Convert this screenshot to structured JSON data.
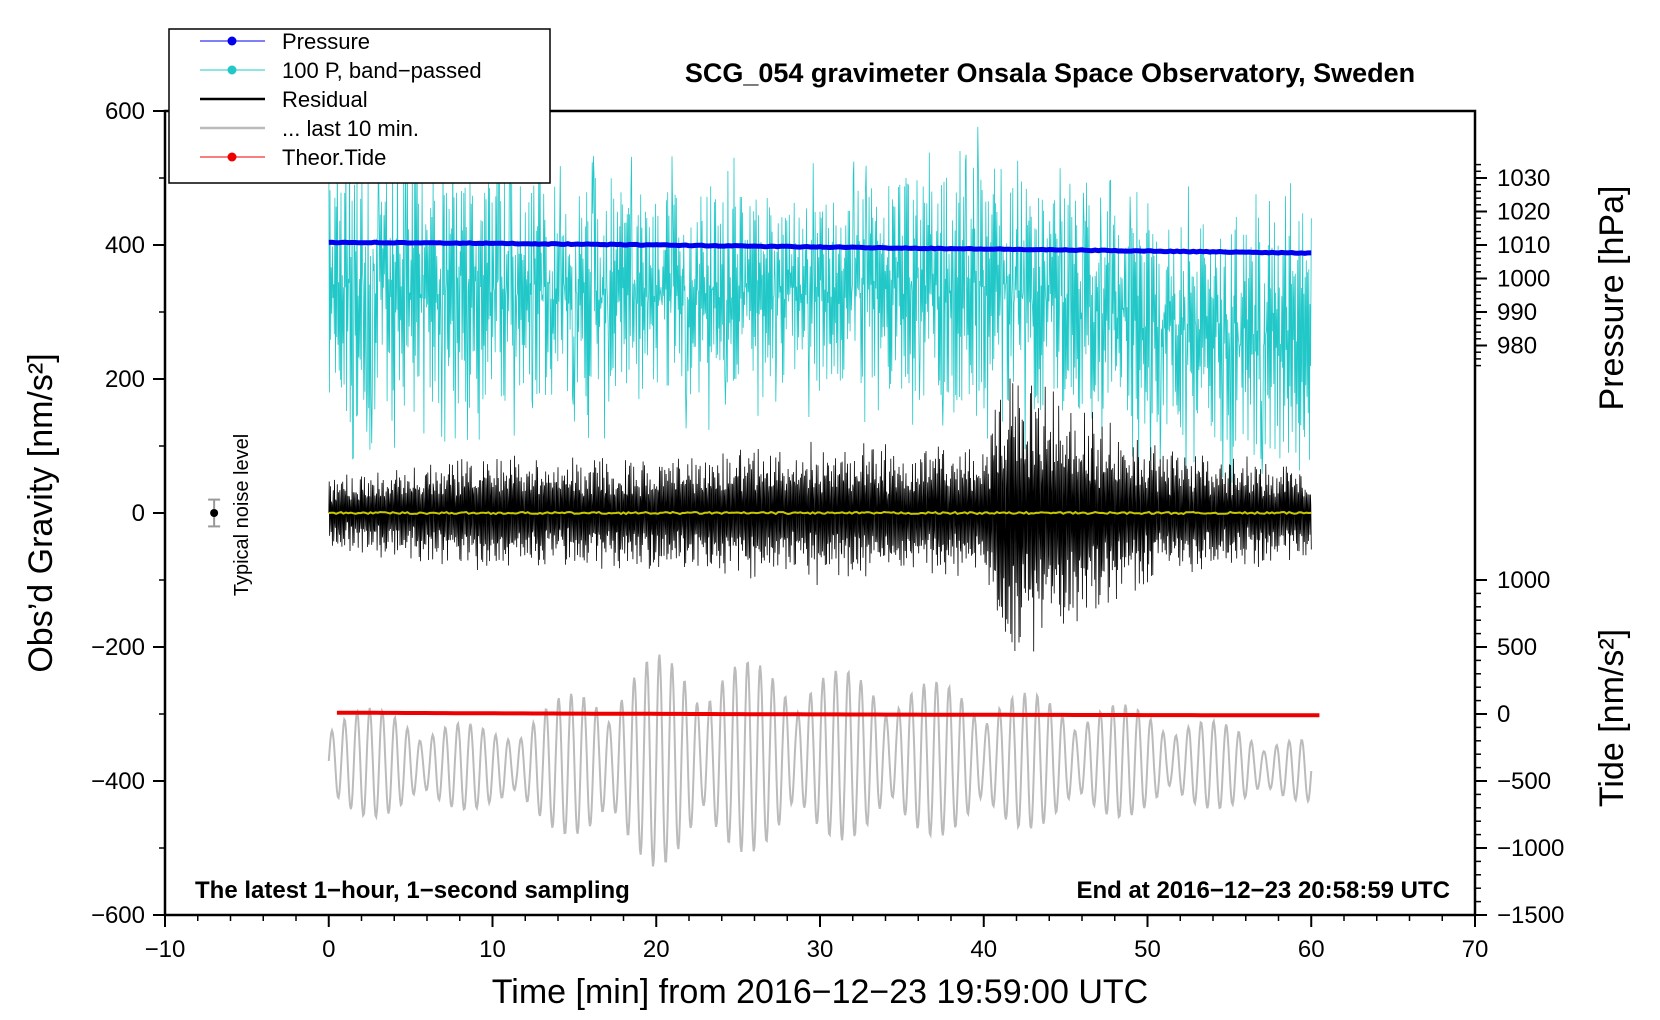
{
  "chart_data": {
    "type": "line",
    "title": "SCG_054 gravimeter Onsala Space Observatory, Sweden",
    "xlabel": "Time [min] from 2016−12−23 19:59:00 UTC",
    "ylabel_left": "Obs’d Gravity [nm/s²]",
    "ylabel_right_top": "Pressure [hPa]",
    "ylabel_right_bottom": "Tide [nm/s²]",
    "xlim": [
      -10,
      70
    ],
    "ylim": [
      -600,
      600
    ],
    "x_ticks": [
      -10,
      0,
      10,
      20,
      30,
      40,
      50,
      60,
      70
    ],
    "x_tick_labels": [
      "−10",
      "0",
      "10",
      "20",
      "30",
      "40",
      "50",
      "60",
      "70"
    ],
    "y_ticks": [
      -600,
      -400,
      -200,
      0,
      200,
      400,
      600
    ],
    "y_tick_labels": [
      "−600",
      "−400",
      "−200",
      "0",
      "200",
      "400",
      "600"
    ],
    "pressure_axis": {
      "ticks": [
        980,
        990,
        1000,
        1010,
        1020,
        1030
      ],
      "tick_labels": [
        "980",
        "990",
        "1000",
        "1010",
        "1020",
        "1030"
      ],
      "g_at_ref": 400,
      "ref_value": 1010,
      "g_per_unit": -5.0
    },
    "tide_axis": {
      "ticks": [
        -1500,
        -1000,
        -500,
        0,
        500,
        1000
      ],
      "tick_labels": [
        "−1500",
        "−1000",
        "−500",
        "0",
        "500",
        "1000"
      ],
      "g_at_zero": -300,
      "g_per_unit": 0.2
    },
    "legend": [
      {
        "label": "Pressure",
        "color": "#0000ee",
        "style": "line-dot"
      },
      {
        "label": "100 P, band−passed",
        "color": "#22c8c8",
        "style": "line-dot"
      },
      {
        "label": "Residual",
        "color": "#000000",
        "style": "line"
      },
      {
        "label": "... last 10 min.",
        "color": "#bbbbbb",
        "style": "line"
      },
      {
        "label": "Theor.Tide",
        "color": "#ee0000",
        "style": "line-dot"
      }
    ],
    "annotations": {
      "bottom_left": "The latest 1−hour, 1−second sampling",
      "bottom_right": "End at 2016−12−23 20:58:59 UTC",
      "noise_label": "Typical noise level"
    },
    "noise_level": {
      "x": -7,
      "y": 0,
      "err": 20
    },
    "series": [
      {
        "name": "Pressure",
        "color": "#0000ee",
        "x": [
          0,
          10,
          20,
          30,
          40,
          50,
          60
        ],
        "values": [
          1010.8,
          1010.5,
          1010.0,
          1009.4,
          1008.8,
          1008.2,
          1007.6
        ]
      },
      {
        "name": "Theor.Tide",
        "color": "#ee0000",
        "x": [
          0.5,
          10,
          20,
          30,
          40,
          50,
          60.5
        ],
        "values": [
          10,
          5,
          1,
          -3,
          -6,
          -8,
          -10
        ]
      },
      {
        "name": "Residual (envelope)",
        "color": "#000000",
        "x": [
          0,
          10,
          20,
          30,
          40,
          41.3,
          50,
          60
        ],
        "amplitude": [
          60,
          90,
          90,
          110,
          100,
          240,
          110,
          70
        ]
      },
      {
        "name": "... last 10 min. (range)",
        "color": "#bbbbbb",
        "x": [
          0,
          10,
          20,
          30,
          40,
          50,
          60
        ],
        "min": [
          -460,
          -440,
          -530,
          -490,
          -480,
          -450,
          -430
        ],
        "max": [
          -280,
          -320,
          -210,
          -230,
          -260,
          -290,
          -340
        ]
      },
      {
        "name": "100 P, band−passed (range)",
        "color": "#22c8c8",
        "x": [
          0,
          10,
          20,
          30,
          40,
          50,
          60
        ],
        "min": [
          130,
          170,
          170,
          200,
          160,
          130,
          60
        ],
        "max": [
          560,
          500,
          480,
          470,
          520,
          430,
          450
        ]
      },
      {
        "name": "Zero reference",
        "color": "#c8c800",
        "x": [
          0,
          60
        ],
        "values": [
          0,
          0
        ]
      }
    ]
  }
}
